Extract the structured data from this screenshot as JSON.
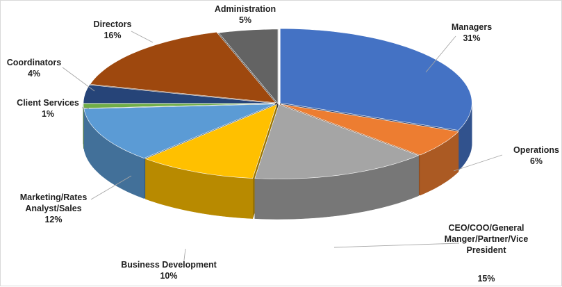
{
  "chart_data": {
    "type": "pie",
    "style": "3d-exploded",
    "legend": "none",
    "slices": [
      {
        "name": "Managers",
        "label": [
          "Managers",
          "31%"
        ],
        "value": 31,
        "color": "#4472C4"
      },
      {
        "name": "Operations",
        "label": [
          "Operations",
          "6%"
        ],
        "value": 6,
        "color": "#ED7D31"
      },
      {
        "name": "CEO/COO/General Manger/Partner/Vice President",
        "label": [
          "CEO/COO/General",
          "Manger/Partner/Vice",
          "President",
          "15%"
        ],
        "value": 15,
        "color": "#A5A5A5"
      },
      {
        "name": "Business Development",
        "label": [
          "Business Development",
          "10%"
        ],
        "value": 10,
        "color": "#FFC000"
      },
      {
        "name": "Marketing/Rates Analyst/Sales",
        "label": [
          "Marketing/Rates",
          "Analyst/Sales",
          "12%"
        ],
        "value": 12,
        "color": "#5B9BD5"
      },
      {
        "name": "Client Services",
        "label": [
          "Client Services",
          "1%"
        ],
        "value": 1,
        "color": "#70AD47"
      },
      {
        "name": "Coordinators",
        "label": [
          "Coordinators",
          "4%"
        ],
        "value": 4,
        "color": "#264478"
      },
      {
        "name": "Directors",
        "label": [
          "Directors",
          "16%"
        ],
        "value": 16,
        "color": "#9E480E"
      },
      {
        "name": "Administration",
        "label": [
          "Administration",
          "5%"
        ],
        "value": 5,
        "color": "#636363"
      }
    ]
  }
}
